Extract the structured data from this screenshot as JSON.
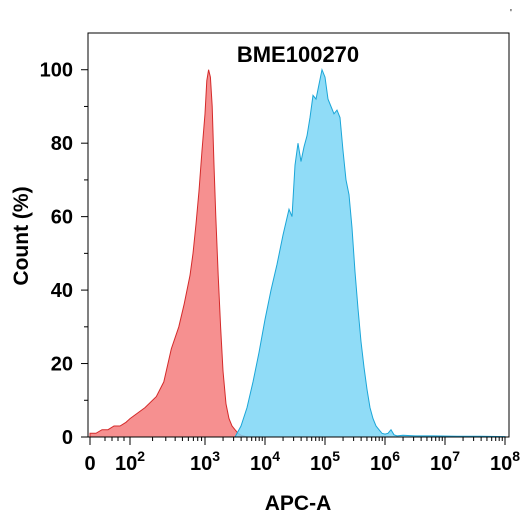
{
  "chart_data": {
    "type": "area",
    "title": "BME100270",
    "xlabel": "APC-A",
    "ylabel": "Count  (%)",
    "x_scale": "biexponential (log10 decades)",
    "x_tick_labels": [
      {
        "base": "0",
        "exp": ""
      },
      {
        "base": "10",
        "exp": "2"
      },
      {
        "base": "10",
        "exp": "3"
      },
      {
        "base": "10",
        "exp": "4"
      },
      {
        "base": "10",
        "exp": "5"
      },
      {
        "base": "10",
        "exp": "6"
      },
      {
        "base": "10",
        "exp": "7"
      },
      {
        "base": "10",
        "exp": "8"
      }
    ],
    "x_tick_decades": [
      0,
      2,
      3,
      4,
      5,
      6,
      7,
      8
    ],
    "y_ticks": [
      0,
      20,
      40,
      60,
      80,
      100
    ],
    "ylim": [
      0,
      110
    ],
    "grid": false,
    "series": [
      {
        "color": "#F47C7C",
        "stroke": "#D42A2A",
        "x_decade": [
          0.0,
          0.3,
          0.6,
          0.9,
          1.2,
          1.5,
          1.8,
          2.0,
          2.2,
          2.35,
          2.45,
          2.55,
          2.65,
          2.72,
          2.76,
          2.8,
          2.84,
          2.88,
          2.92,
          2.96,
          3.0,
          3.03,
          3.06,
          3.09,
          3.12,
          3.15,
          3.18,
          3.22,
          3.26,
          3.3,
          3.35,
          3.4,
          3.45,
          3.5,
          3.55,
          3.6,
          3.7
        ],
        "y": [
          1,
          1,
          2,
          2,
          3,
          3,
          4,
          5,
          8,
          11,
          15,
          24,
          30,
          36,
          40,
          44,
          50,
          58,
          67,
          78,
          88,
          97,
          100,
          98,
          90,
          74,
          60,
          44,
          30,
          18,
          9,
          5,
          3,
          2,
          1,
          0.5,
          0
        ]
      },
      {
        "color": "#7DD6F6",
        "stroke": "#1BA6D8",
        "x_decade": [
          3.5,
          3.6,
          3.7,
          3.8,
          3.9,
          4.0,
          4.1,
          4.2,
          4.3,
          4.4,
          4.45,
          4.5,
          4.55,
          4.6,
          4.65,
          4.7,
          4.75,
          4.8,
          4.85,
          4.9,
          4.95,
          5.0,
          5.05,
          5.1,
          5.15,
          5.2,
          5.25,
          5.3,
          5.35,
          5.4,
          5.45,
          5.5,
          5.55,
          5.6,
          5.65,
          5.7,
          5.75,
          5.8,
          5.85,
          5.9,
          5.95,
          6.0,
          6.05,
          6.1,
          6.15,
          6.2,
          6.3,
          6.5,
          6.8,
          7.2,
          7.6,
          8.0
        ],
        "y": [
          0,
          3,
          8,
          15,
          23,
          32,
          40,
          47,
          55,
          62,
          60,
          74,
          80,
          75,
          79,
          82,
          87,
          93,
          92,
          96,
          100,
          98,
          92,
          90,
          88,
          89,
          87,
          78,
          70,
          66,
          57,
          45,
          35,
          26,
          19,
          13,
          8,
          5,
          3,
          2,
          1,
          0.8,
          1,
          2,
          0.6,
          0.3,
          0.5,
          0.3,
          0.3,
          0.2,
          0.2,
          0.1
        ]
      }
    ]
  }
}
